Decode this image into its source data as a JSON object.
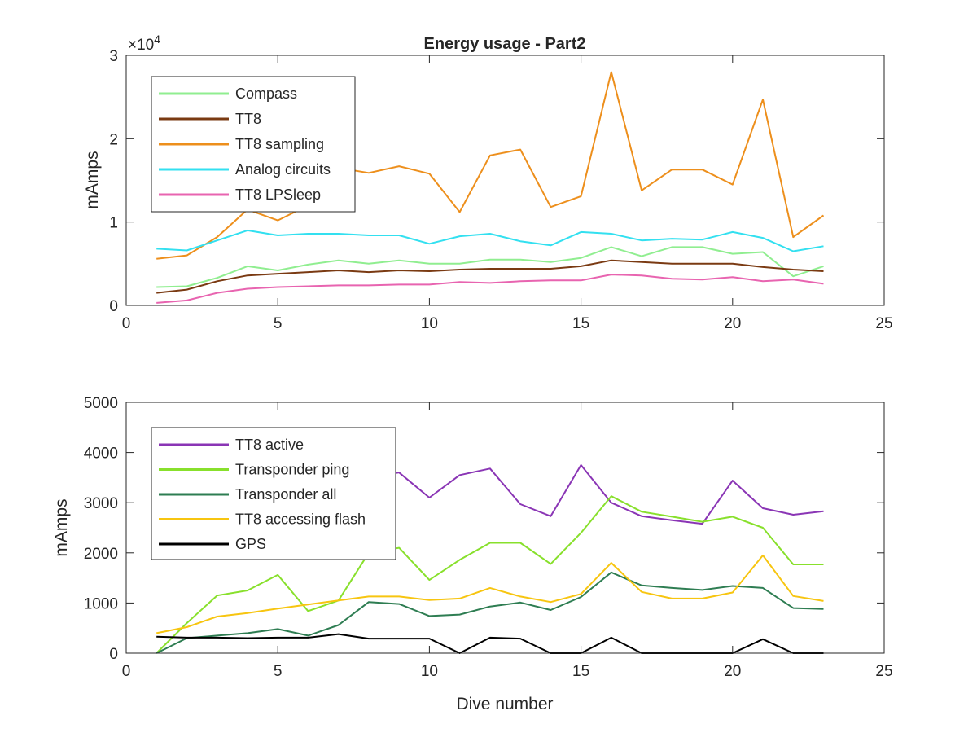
{
  "figure": {
    "background": "#ffffff",
    "axis_color": "#262626"
  },
  "chart_data": [
    {
      "type": "line",
      "title": "Energy usage - Part2",
      "xlabel": "",
      "ylabel": "mAmps",
      "xlim": [
        0,
        25
      ],
      "ylim": [
        0,
        30000
      ],
      "xticks": [
        0,
        5,
        10,
        15,
        20,
        25
      ],
      "yticks": [
        0,
        10000,
        20000,
        30000
      ],
      "ytick_labels": [
        "0",
        "1",
        "2",
        "3"
      ],
      "y_exponent_label": "×10",
      "y_exponent_power": "4",
      "grid": false,
      "legend_position": "top-left",
      "x": [
        1,
        2,
        3,
        4,
        5,
        6,
        7,
        8,
        9,
        10,
        11,
        12,
        13,
        14,
        15,
        16,
        17,
        18,
        19,
        20,
        21,
        22,
        23
      ],
      "series": [
        {
          "name": "Compass",
          "color": "#90ee90",
          "values": [
            2200,
            2300,
            3300,
            4700,
            4200,
            4900,
            5400,
            5000,
            5400,
            5000,
            5000,
            5500,
            5500,
            5200,
            5700,
            7000,
            5900,
            7000,
            7000,
            6200,
            6400,
            3500,
            4700
          ]
        },
        {
          "name": "TT8",
          "color": "#7a3a12",
          "values": [
            1500,
            1900,
            2900,
            3600,
            3800,
            4000,
            4200,
            4000,
            4200,
            4100,
            4300,
            4400,
            4400,
            4400,
            4700,
            5400,
            5200,
            5000,
            5000,
            5000,
            4600,
            4300,
            4100
          ]
        },
        {
          "name": "TT8 sampling",
          "color": "#ed8f1c",
          "values": [
            5600,
            6000,
            8200,
            11500,
            10200,
            12000,
            16500,
            15900,
            16700,
            15800,
            11200,
            18000,
            18700,
            11800,
            13100,
            28000,
            13800,
            16300,
            16300,
            14500,
            24700,
            8200,
            10800
          ]
        },
        {
          "name": "Analog circuits",
          "color": "#33e0f0",
          "values": [
            6800,
            6600,
            7800,
            9000,
            8400,
            8600,
            8600,
            8400,
            8400,
            7400,
            8300,
            8600,
            7700,
            7200,
            8800,
            8600,
            7800,
            8000,
            7900,
            8800,
            8100,
            6500,
            7100
          ]
        },
        {
          "name": "TT8 LPSleep",
          "color": "#e864b0",
          "values": [
            300,
            600,
            1500,
            2000,
            2200,
            2300,
            2400,
            2400,
            2500,
            2500,
            2800,
            2700,
            2900,
            3000,
            3000,
            3700,
            3600,
            3200,
            3100,
            3400,
            2900,
            3100,
            2600
          ]
        }
      ]
    },
    {
      "type": "line",
      "title": "",
      "xlabel": "Dive number",
      "ylabel": "mAmps",
      "xlim": [
        0,
        25
      ],
      "ylim": [
        0,
        5000
      ],
      "xticks": [
        0,
        5,
        10,
        15,
        20,
        25
      ],
      "yticks": [
        0,
        1000,
        2000,
        3000,
        4000,
        5000
      ],
      "ytick_labels": [
        "0",
        "1000",
        "2000",
        "3000",
        "4000",
        "5000"
      ],
      "grid": false,
      "legend_position": "top-left",
      "x": [
        1,
        2,
        3,
        4,
        5,
        6,
        7,
        8,
        9,
        10,
        11,
        12,
        13,
        14,
        15,
        16,
        17,
        18,
        19,
        20,
        21,
        22,
        23
      ],
      "series": [
        {
          "name": "TT8 active",
          "color": "#8a35b5",
          "values": [
            3200,
            3300,
            3400,
            3500,
            3500,
            3500,
            3500,
            3500,
            3600,
            3100,
            3550,
            3680,
            2970,
            2730,
            3750,
            3000,
            2730,
            2650,
            2580,
            3440,
            2890,
            2760,
            2830
          ]
        },
        {
          "name": "Transponder ping",
          "color": "#88e02c",
          "values": [
            0,
            600,
            1150,
            1250,
            1560,
            840,
            1050,
            2000,
            2100,
            1460,
            1860,
            2200,
            2200,
            1780,
            2400,
            3130,
            2820,
            2720,
            2620,
            2720,
            2500,
            1770,
            1770
          ]
        },
        {
          "name": "Transponder all",
          "color": "#2e7d52",
          "values": [
            0,
            300,
            350,
            400,
            480,
            350,
            560,
            1020,
            980,
            740,
            770,
            930,
            1010,
            860,
            1120,
            1610,
            1350,
            1300,
            1260,
            1340,
            1300,
            900,
            880
          ]
        },
        {
          "name": "TT8 accessing flash",
          "color": "#f7c510",
          "values": [
            400,
            520,
            730,
            800,
            890,
            970,
            1050,
            1130,
            1130,
            1060,
            1090,
            1300,
            1130,
            1020,
            1180,
            1800,
            1220,
            1090,
            1090,
            1210,
            1950,
            1140,
            1040
          ]
        },
        {
          "name": "GPS",
          "color": "#000000",
          "values": [
            330,
            310,
            310,
            300,
            310,
            310,
            380,
            290,
            290,
            290,
            0,
            310,
            290,
            0,
            0,
            310,
            0,
            0,
            0,
            0,
            280,
            0,
            0
          ]
        }
      ]
    }
  ]
}
